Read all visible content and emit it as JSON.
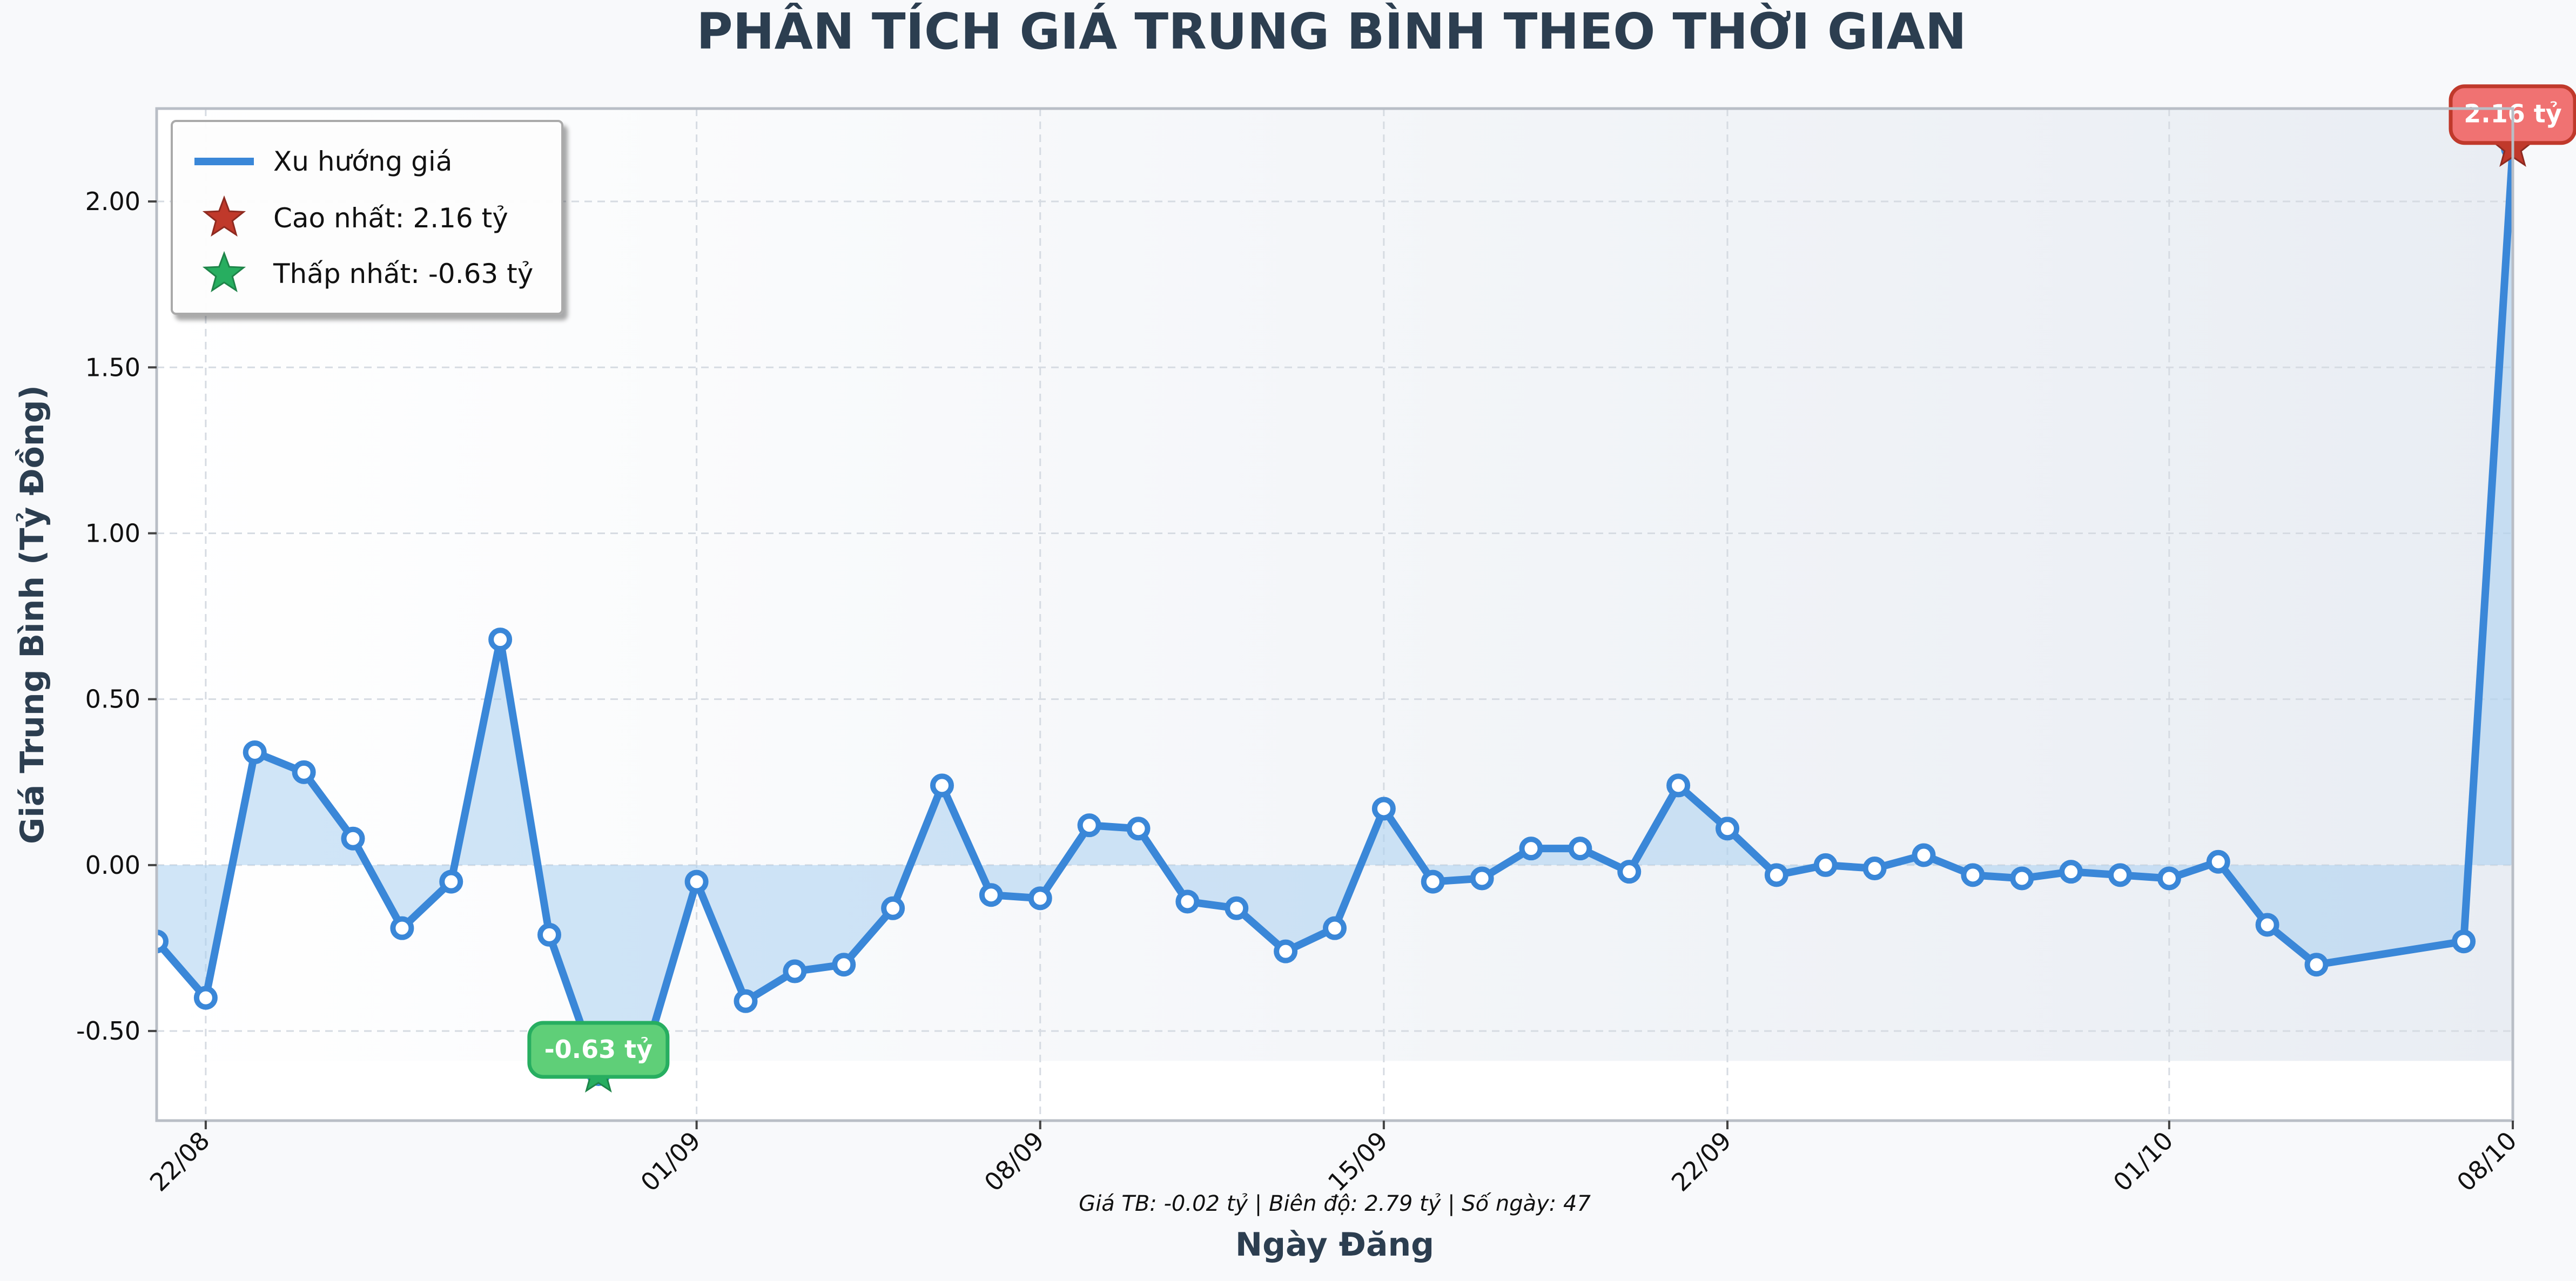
{
  "colors": {
    "line": "#3a87d8",
    "fill": "#a9d0f0",
    "max_marker": "#c0392b",
    "max_label_bg": "#f07272",
    "min_marker": "#27ae60",
    "min_label_bg": "#5fcf78",
    "title": "#2c3e50"
  },
  "chart_data": {
    "type": "line",
    "title": "PHÂN TÍCH GIÁ TRUNG BÌNH THEO THỜI GIAN",
    "xlabel": "Ngày Đăng",
    "ylabel": "Giá Trung Bình (Tỷ Đồng)",
    "ylim": [
      -0.77,
      2.28
    ],
    "xlim": [
      "2024-08-21",
      "2024-10-08"
    ],
    "grid": true,
    "legend_position": "top-left",
    "x_ticks": [
      "22/08",
      "01/09",
      "08/09",
      "15/09",
      "22/09",
      "01/10",
      "08/10"
    ],
    "x_tick_dates": [
      "2024-08-22",
      "2024-09-01",
      "2024-09-08",
      "2024-09-15",
      "2024-09-22",
      "2024-10-01",
      "2024-10-08"
    ],
    "y_ticks": [
      "-0.50",
      "0.00",
      "0.50",
      "1.00",
      "1.50",
      "2.00"
    ],
    "y_tick_values": [
      -0.5,
      0,
      0.5,
      1.0,
      1.5,
      2.0
    ],
    "series": [
      {
        "name": "Xu hướng giá",
        "points": [
          {
            "x": "2024-08-21",
            "y": -0.23
          },
          {
            "x": "2024-08-22",
            "y": -0.4
          },
          {
            "x": "2024-08-23",
            "y": 0.34
          },
          {
            "x": "2024-08-24",
            "y": 0.28
          },
          {
            "x": "2024-08-25",
            "y": 0.08
          },
          {
            "x": "2024-08-26",
            "y": -0.19
          },
          {
            "x": "2024-08-27",
            "y": -0.05
          },
          {
            "x": "2024-08-28",
            "y": 0.68
          },
          {
            "x": "2024-08-29",
            "y": -0.21
          },
          {
            "x": "2024-08-30",
            "y": -0.63
          },
          {
            "x": "2024-08-31",
            "y": -0.55
          },
          {
            "x": "2024-09-01",
            "y": -0.05
          },
          {
            "x": "2024-09-02",
            "y": -0.41
          },
          {
            "x": "2024-09-03",
            "y": -0.32
          },
          {
            "x": "2024-09-04",
            "y": -0.3
          },
          {
            "x": "2024-09-05",
            "y": -0.13
          },
          {
            "x": "2024-09-06",
            "y": 0.24
          },
          {
            "x": "2024-09-07",
            "y": -0.09
          },
          {
            "x": "2024-09-08",
            "y": -0.1
          },
          {
            "x": "2024-09-09",
            "y": 0.12
          },
          {
            "x": "2024-09-10",
            "y": 0.11
          },
          {
            "x": "2024-09-11",
            "y": -0.11
          },
          {
            "x": "2024-09-12",
            "y": -0.13
          },
          {
            "x": "2024-09-13",
            "y": -0.26
          },
          {
            "x": "2024-09-14",
            "y": -0.19
          },
          {
            "x": "2024-09-15",
            "y": 0.17
          },
          {
            "x": "2024-09-16",
            "y": -0.05
          },
          {
            "x": "2024-09-17",
            "y": -0.04
          },
          {
            "x": "2024-09-18",
            "y": 0.05
          },
          {
            "x": "2024-09-19",
            "y": 0.05
          },
          {
            "x": "2024-09-20",
            "y": -0.02
          },
          {
            "x": "2024-09-21",
            "y": 0.24
          },
          {
            "x": "2024-09-22",
            "y": 0.11
          },
          {
            "x": "2024-09-23",
            "y": -0.03
          },
          {
            "x": "2024-09-24",
            "y": 0.0
          },
          {
            "x": "2024-09-25",
            "y": -0.01
          },
          {
            "x": "2024-09-26",
            "y": 0.03
          },
          {
            "x": "2024-09-27",
            "y": -0.03
          },
          {
            "x": "2024-09-28",
            "y": -0.04
          },
          {
            "x": "2024-09-29",
            "y": -0.02
          },
          {
            "x": "2024-09-30",
            "y": -0.03
          },
          {
            "x": "2024-10-01",
            "y": -0.04
          },
          {
            "x": "2024-10-02",
            "y": 0.01
          },
          {
            "x": "2024-10-03",
            "y": -0.18
          },
          {
            "x": "2024-10-04",
            "y": -0.3
          },
          {
            "x": "2024-10-07",
            "y": -0.23
          },
          {
            "x": "2024-10-08",
            "y": 2.16
          }
        ]
      }
    ],
    "legend": [
      {
        "label": "Xu hướng giá",
        "marker": "line"
      },
      {
        "label": "Cao nhất: 2.16 tỷ",
        "marker": "red-star"
      },
      {
        "label": "Thấp nhất: -0.63 tỷ",
        "marker": "green-star"
      }
    ],
    "annotations": {
      "max_label": "2.16 tỷ",
      "min_label": "-0.63 tỷ",
      "summary": "Giá TB: -0.02 tỷ | Biên độ: 2.79 tỷ | Số ngày: 47"
    }
  }
}
